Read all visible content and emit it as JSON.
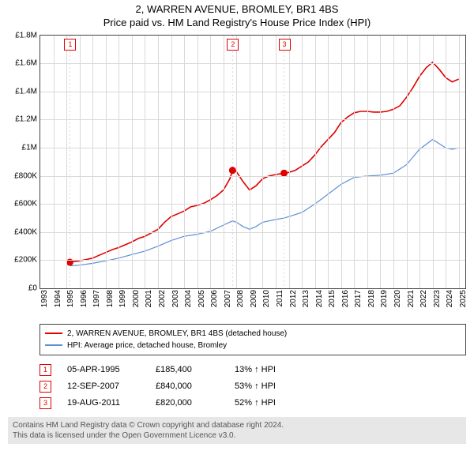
{
  "title": "2, WARREN AVENUE, BROMLEY, BR1 4BS",
  "subtitle": "Price paid vs. HM Land Registry's House Price Index (HPI)",
  "chart": {
    "type": "line",
    "background_color": "#ffffff",
    "grid_color": "#d9d9d9",
    "border_color": "#444444",
    "xlim": [
      1993,
      2025.5
    ],
    "ylim": [
      0,
      1800000
    ],
    "ytick_step": 200000,
    "ylabels": [
      "£0",
      "£200K",
      "£400K",
      "£600K",
      "£800K",
      "£1M",
      "£1.2M",
      "£1.4M",
      "£1.6M",
      "£1.8M"
    ],
    "xticks": [
      1993,
      1994,
      1995,
      1996,
      1997,
      1998,
      1999,
      2000,
      2001,
      2002,
      2003,
      2004,
      2005,
      2006,
      2007,
      2008,
      2009,
      2010,
      2011,
      2012,
      2013,
      2014,
      2015,
      2016,
      2017,
      2018,
      2019,
      2020,
      2021,
      2022,
      2023,
      2024,
      2025
    ],
    "series": [
      {
        "name": "2, WARREN AVENUE, BROMLEY, BR1 4BS (detached house)",
        "color": "#e00000",
        "width": 1.6,
        "data": [
          [
            1995.26,
            185400
          ],
          [
            1995.5,
            190000
          ],
          [
            1996,
            195000
          ],
          [
            1996.5,
            205000
          ],
          [
            1997,
            215000
          ],
          [
            1997.5,
            235000
          ],
          [
            1998,
            255000
          ],
          [
            1998.5,
            275000
          ],
          [
            1999,
            290000
          ],
          [
            1999.5,
            310000
          ],
          [
            2000,
            330000
          ],
          [
            2000.5,
            355000
          ],
          [
            2001,
            370000
          ],
          [
            2001.5,
            395000
          ],
          [
            2002,
            420000
          ],
          [
            2002.5,
            470000
          ],
          [
            2003,
            510000
          ],
          [
            2003.5,
            530000
          ],
          [
            2004,
            550000
          ],
          [
            2004.5,
            580000
          ],
          [
            2005,
            590000
          ],
          [
            2005.5,
            605000
          ],
          [
            2006,
            630000
          ],
          [
            2006.5,
            660000
          ],
          [
            2007,
            700000
          ],
          [
            2007.5,
            780000
          ],
          [
            2007.7,
            840000
          ],
          [
            2008,
            830000
          ],
          [
            2008.5,
            760000
          ],
          [
            2009,
            700000
          ],
          [
            2009.5,
            730000
          ],
          [
            2010,
            780000
          ],
          [
            2010.5,
            800000
          ],
          [
            2011,
            810000
          ],
          [
            2011.64,
            820000
          ],
          [
            2012,
            825000
          ],
          [
            2012.5,
            840000
          ],
          [
            2013,
            870000
          ],
          [
            2013.5,
            900000
          ],
          [
            2014,
            950000
          ],
          [
            2014.5,
            1010000
          ],
          [
            2015,
            1060000
          ],
          [
            2015.5,
            1110000
          ],
          [
            2016,
            1180000
          ],
          [
            2016.5,
            1220000
          ],
          [
            2017,
            1250000
          ],
          [
            2017.5,
            1260000
          ],
          [
            2018,
            1260000
          ],
          [
            2018.5,
            1255000
          ],
          [
            2019,
            1255000
          ],
          [
            2019.5,
            1260000
          ],
          [
            2020,
            1275000
          ],
          [
            2020.5,
            1300000
          ],
          [
            2021,
            1360000
          ],
          [
            2021.5,
            1430000
          ],
          [
            2022,
            1510000
          ],
          [
            2022.5,
            1570000
          ],
          [
            2023,
            1610000
          ],
          [
            2023.5,
            1560000
          ],
          [
            2024,
            1500000
          ],
          [
            2024.5,
            1470000
          ],
          [
            2025,
            1490000
          ]
        ]
      },
      {
        "name": "HPI: Average price, detached house, Bromley",
        "color": "#5b8fd6",
        "width": 1.2,
        "data": [
          [
            1995.26,
            160000
          ],
          [
            1996,
            165000
          ],
          [
            1997,
            178000
          ],
          [
            1998,
            195000
          ],
          [
            1999,
            215000
          ],
          [
            2000,
            240000
          ],
          [
            2001,
            265000
          ],
          [
            2002,
            300000
          ],
          [
            2003,
            340000
          ],
          [
            2004,
            370000
          ],
          [
            2005,
            385000
          ],
          [
            2006,
            405000
          ],
          [
            2007,
            450000
          ],
          [
            2007.7,
            480000
          ],
          [
            2008,
            470000
          ],
          [
            2008.5,
            440000
          ],
          [
            2009,
            420000
          ],
          [
            2009.5,
            440000
          ],
          [
            2010,
            470000
          ],
          [
            2011,
            490000
          ],
          [
            2011.64,
            500000
          ],
          [
            2012,
            510000
          ],
          [
            2013,
            540000
          ],
          [
            2014,
            600000
          ],
          [
            2015,
            670000
          ],
          [
            2016,
            740000
          ],
          [
            2017,
            790000
          ],
          [
            2018,
            800000
          ],
          [
            2019,
            805000
          ],
          [
            2020,
            820000
          ],
          [
            2021,
            880000
          ],
          [
            2022,
            990000
          ],
          [
            2023,
            1060000
          ],
          [
            2023.5,
            1030000
          ],
          [
            2024,
            1000000
          ],
          [
            2024.5,
            990000
          ],
          [
            2025,
            1000000
          ]
        ]
      }
    ],
    "sale_points": [
      {
        "x": 1995.26,
        "y": 185400
      },
      {
        "x": 2007.7,
        "y": 840000
      },
      {
        "x": 2011.64,
        "y": 820000
      }
    ],
    "sale_markers": [
      {
        "label": "1",
        "x": 1995.26
      },
      {
        "label": "2",
        "x": 2007.7
      },
      {
        "label": "3",
        "x": 2011.64
      }
    ]
  },
  "legend": {
    "items": [
      {
        "color": "#e00000",
        "label": "2, WARREN AVENUE, BROMLEY, BR1 4BS (detached house)"
      },
      {
        "color": "#5b8fd6",
        "label": "HPI: Average price, detached house, Bromley"
      }
    ]
  },
  "transactions": [
    {
      "idx": "1",
      "date": "05-APR-1995",
      "price": "£185,400",
      "delta": "13% ↑ HPI"
    },
    {
      "idx": "2",
      "date": "12-SEP-2007",
      "price": "£840,000",
      "delta": "53% ↑ HPI"
    },
    {
      "idx": "3",
      "date": "19-AUG-2011",
      "price": "£820,000",
      "delta": "52% ↑ HPI"
    }
  ],
  "footer_line1": "Contains HM Land Registry data © Crown copyright and database right 2024.",
  "footer_line2": "This data is licensed under the Open Government Licence v3.0."
}
